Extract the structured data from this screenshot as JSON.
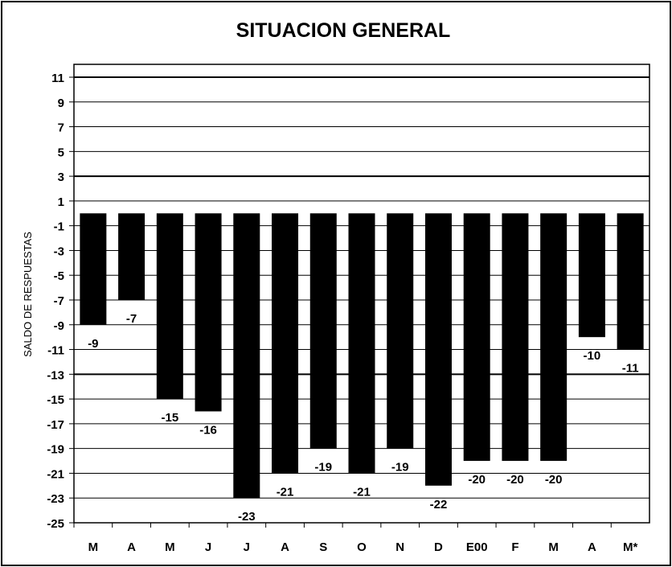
{
  "chart_data": {
    "type": "bar",
    "title": "SITUACION GENERAL",
    "xlabel": "",
    "ylabel": "SALDO DE RESPUESTAS",
    "categories": [
      "M",
      "A",
      "M",
      "J",
      "J",
      "A",
      "S",
      "O",
      "N",
      "D",
      "E00",
      "F",
      "M",
      "A",
      "M*"
    ],
    "values": [
      -9,
      -7,
      -15,
      -16,
      -23,
      -21,
      -19,
      -21,
      -19,
      -22,
      -20,
      -20,
      -20,
      -10,
      -11
    ],
    "ylim": [
      -25,
      11
    ],
    "yticks": [
      11,
      9,
      7,
      5,
      3,
      1,
      -1,
      -3,
      -5,
      -7,
      -9,
      -11,
      -13,
      -15,
      -17,
      -19,
      -21,
      -23,
      -25
    ],
    "grid": true,
    "legend": "none",
    "bar_color": "#000000"
  }
}
